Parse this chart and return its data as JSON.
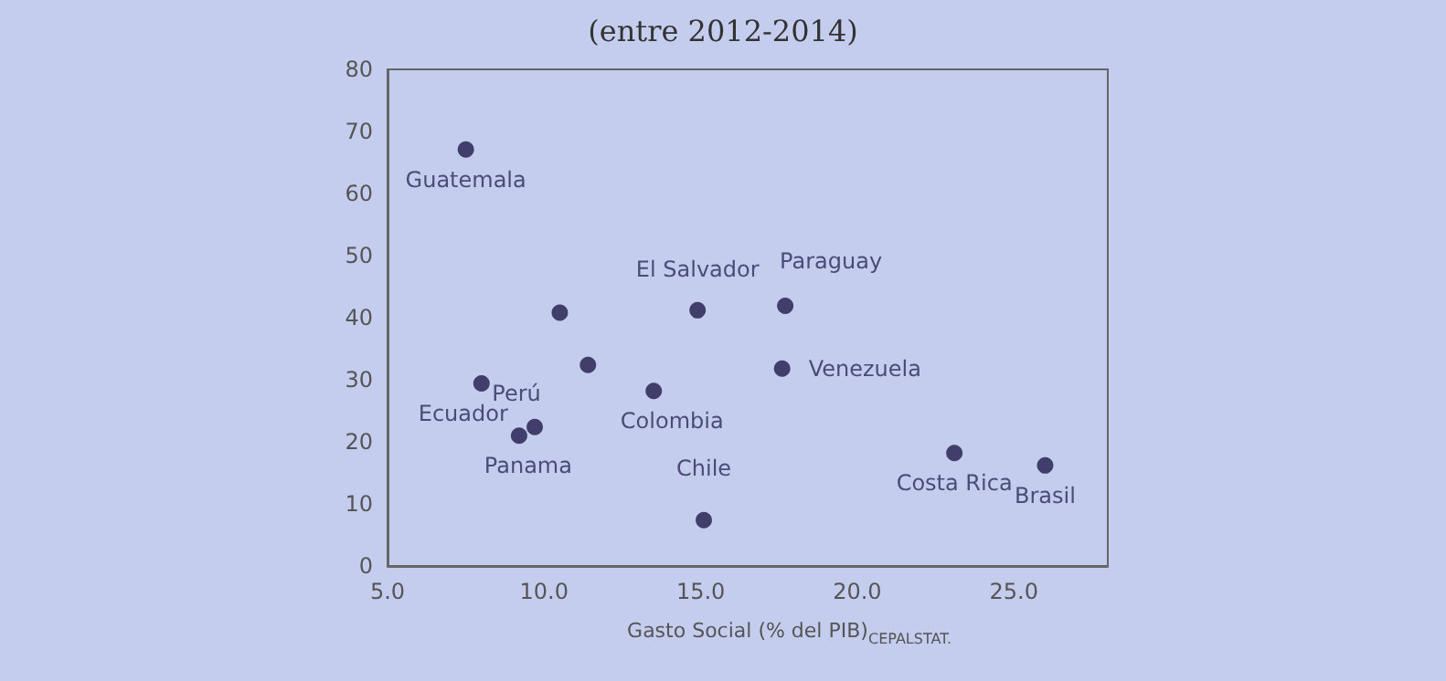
{
  "chart_data": {
    "type": "scatter",
    "title": "(entre 2012-2014)",
    "xlabel": "Gasto Social (% del PIB)",
    "x": [
      7.5,
      10.5,
      11.4,
      14.9,
      17.7,
      17.6,
      8.0,
      13.5,
      9.7,
      9.2,
      15.1,
      23.1,
      26.0
    ],
    "values": [
      67.1,
      40.8,
      32.4,
      41.2,
      41.9,
      31.8,
      29.4,
      28.2,
      22.4,
      21.0,
      7.4,
      18.2,
      16.2
    ],
    "color": "#1f1a4a",
    "marker": "circle",
    "grid": false,
    "xlim": [
      5,
      28
    ],
    "xticks": [
      {
        "value": 5,
        "label": "5.0"
      },
      {
        "value": 10,
        "label": "10.0"
      },
      {
        "value": 15,
        "label": "15.0"
      },
      {
        "value": 20,
        "label": "20.0"
      },
      {
        "value": 25,
        "label": "25.0"
      }
    ],
    "ylim": [
      0,
      80
    ],
    "yticks": [
      0,
      10,
      20,
      30,
      40,
      50,
      60,
      70,
      80
    ],
    "annotations": [
      {
        "text": "Guatemala",
        "x": 7.5,
        "y": 67.1
      },
      {
        "text": "El Salvador",
        "x": 14.9,
        "y": 41.2
      },
      {
        "text": "Paraguay",
        "x": 17.7,
        "y": 41.9
      },
      {
        "text": "Venezuela",
        "x": 17.6,
        "y": 31.8
      },
      {
        "text": "Ecuador",
        "x": 8.0,
        "y": 29.4
      },
      {
        "text": "Colombia",
        "x": 13.5,
        "y": 28.2
      },
      {
        "text": "Perú",
        "x": 9.7,
        "y": 22.4
      },
      {
        "text": "Panama",
        "x": 9.2,
        "y": 21.0
      },
      {
        "text": "Chile",
        "x": 15.1,
        "y": 7.4
      },
      {
        "text": "Costa Rica",
        "x": 23.1,
        "y": 18.2
      },
      {
        "text": "Brasil",
        "x": 26.0,
        "y": 16.2
      },
      "CEPALSTAT."
    ]
  }
}
